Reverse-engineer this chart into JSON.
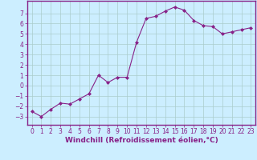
{
  "x": [
    0,
    1,
    2,
    3,
    4,
    5,
    6,
    7,
    8,
    9,
    10,
    11,
    12,
    13,
    14,
    15,
    16,
    17,
    18,
    19,
    20,
    21,
    22,
    23
  ],
  "y": [
    -2.5,
    -3.0,
    -2.3,
    -1.7,
    -1.8,
    -1.3,
    -0.8,
    1.0,
    0.3,
    0.8,
    0.8,
    4.2,
    6.5,
    6.7,
    7.2,
    7.6,
    7.3,
    6.3,
    5.8,
    5.7,
    5.0,
    5.2,
    5.4,
    5.6
  ],
  "line_color": "#882288",
  "marker": "D",
  "markersize": 2.0,
  "linewidth": 0.8,
  "background_color": "#cceeff",
  "grid_color": "#aacccc",
  "xlabel": "Windchill (Refroidissement éolien,°C)",
  "xlabel_color": "#882288",
  "xlabel_fontsize": 6.5,
  "xlim": [
    -0.5,
    23.5
  ],
  "ylim": [
    -3.8,
    8.2
  ],
  "yticks": [
    -3,
    -2,
    -1,
    0,
    1,
    2,
    3,
    4,
    5,
    6,
    7
  ],
  "xticks": [
    0,
    1,
    2,
    3,
    4,
    5,
    6,
    7,
    8,
    9,
    10,
    11,
    12,
    13,
    14,
    15,
    16,
    17,
    18,
    19,
    20,
    21,
    22,
    23
  ],
  "tick_color": "#882288",
  "tick_fontsize": 5.5,
  "spine_color": "#882288",
  "spine_linewidth": 1.0
}
